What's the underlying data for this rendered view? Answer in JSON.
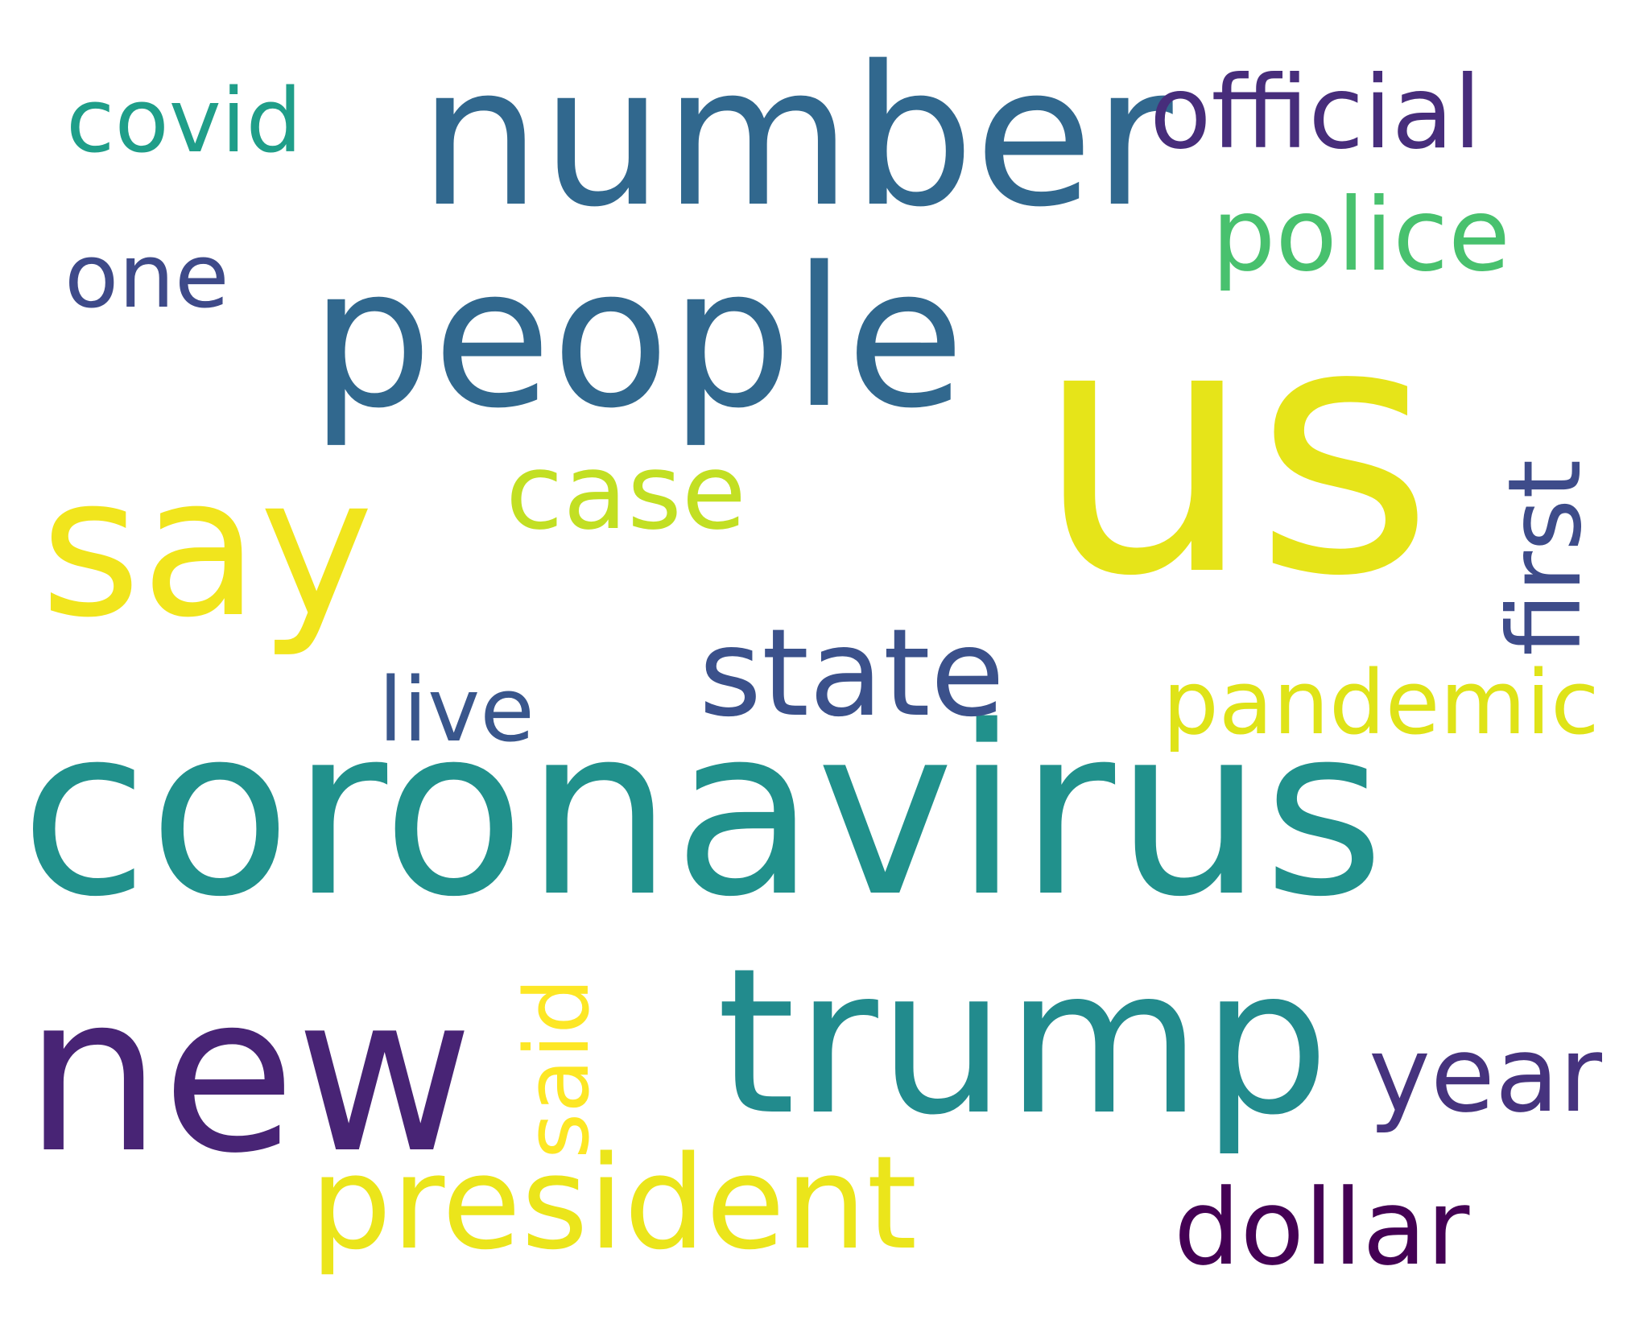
{
  "words": [
    {
      "text": "us",
      "color": "#e6e419"
    },
    {
      "text": "coronavirus",
      "color": "#21918c"
    },
    {
      "text": "number",
      "color": "#31688e"
    },
    {
      "text": "people",
      "color": "#31688e"
    },
    {
      "text": "say",
      "color": "#f1e51d"
    },
    {
      "text": "new",
      "color": "#482475"
    },
    {
      "text": "trump",
      "color": "#228b8d"
    },
    {
      "text": "president",
      "color": "#ebe51b"
    },
    {
      "text": "state",
      "color": "#3b518b"
    },
    {
      "text": "case",
      "color": "#c2df23"
    },
    {
      "text": "official",
      "color": "#472d7b"
    },
    {
      "text": "police",
      "color": "#48c16e"
    },
    {
      "text": "covid",
      "color": "#1f9e89"
    },
    {
      "text": "one",
      "color": "#3e4a89"
    },
    {
      "text": "live",
      "color": "#39568c"
    },
    {
      "text": "pandemic",
      "color": "#dfe318"
    },
    {
      "text": "year",
      "color": "#46337e"
    },
    {
      "text": "dollar",
      "color": "#440154"
    },
    {
      "text": "first",
      "color": "#3e4c8a"
    },
    {
      "text": "said",
      "color": "#fde725"
    }
  ]
}
